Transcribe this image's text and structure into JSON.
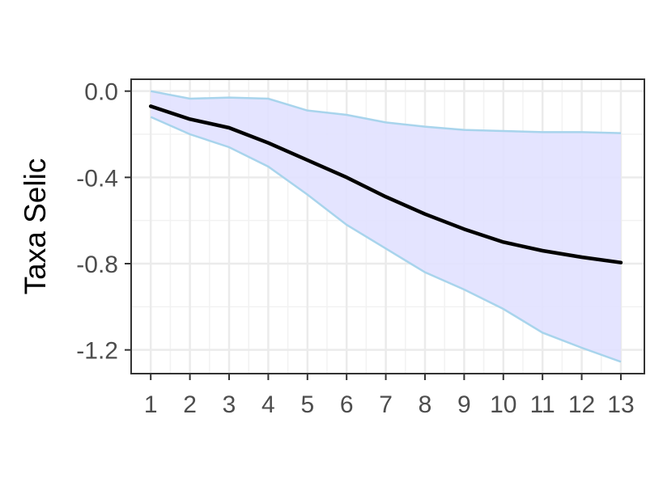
{
  "chart_data": {
    "type": "area",
    "title": "",
    "xlabel": "",
    "ylabel": "Taxa Selic",
    "x": [
      1,
      2,
      3,
      4,
      5,
      6,
      7,
      8,
      9,
      10,
      11,
      12,
      13
    ],
    "xlim": [
      0.5,
      13.6
    ],
    "ylim": [
      -1.31,
      0.055
    ],
    "x_ticks": [
      1,
      2,
      3,
      4,
      5,
      6,
      7,
      8,
      9,
      10,
      11,
      12,
      13
    ],
    "y_ticks": [
      0.0,
      -0.4,
      -0.8,
      -1.2
    ],
    "y_tick_labels": [
      "0.0",
      "-0.4",
      "-0.8",
      "-1.2"
    ],
    "grid": true,
    "series": [
      {
        "role": "estimate",
        "values": [
          -0.07,
          -0.13,
          -0.17,
          -0.24,
          -0.32,
          -0.4,
          -0.49,
          -0.57,
          -0.64,
          -0.7,
          -0.74,
          -0.77,
          -0.795
        ]
      },
      {
        "role": "upper-band",
        "values": [
          0.0,
          -0.035,
          -0.03,
          -0.035,
          -0.09,
          -0.11,
          -0.145,
          -0.165,
          -0.18,
          -0.185,
          -0.19,
          -0.19,
          -0.195
        ]
      },
      {
        "role": "lower-band",
        "values": [
          -0.12,
          -0.2,
          -0.26,
          -0.35,
          -0.48,
          -0.62,
          -0.73,
          -0.84,
          -0.92,
          -1.01,
          -1.12,
          -1.19,
          -1.255
        ]
      }
    ],
    "colors": {
      "band_fill": "#e1e1ff",
      "band_line": "#a8d4ec",
      "estimate_line": "#000000",
      "panel_border": "#333333",
      "grid_major": "#ebebeb",
      "grid_minor": "#f2f2f2"
    }
  }
}
